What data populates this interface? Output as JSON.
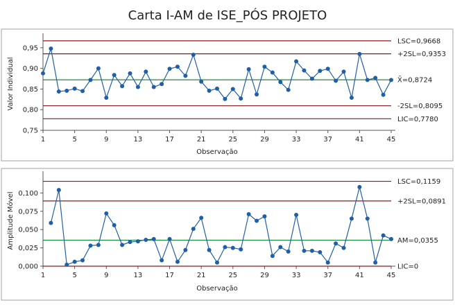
{
  "colors": {
    "series": "#1f5fa8",
    "limit": "#8b1a1a",
    "center": "#1a8a3a",
    "panel_border": "#a0a0a0",
    "axis": "#555555"
  },
  "chart_data": [
    {
      "type": "line",
      "title": "Carta I-AM de ISE_PÓS PROJETO",
      "xlabel": "Observação",
      "ylabel": "Valor Individual",
      "x_ticks": [
        1,
        5,
        9,
        13,
        17,
        21,
        25,
        29,
        33,
        37,
        41,
        45
      ],
      "y_ticks": [
        "0,75",
        "0,80",
        "0,85",
        "0,90",
        "0,95"
      ],
      "y_tick_values": [
        0.75,
        0.8,
        0.85,
        0.9,
        0.95
      ],
      "ylim": [
        0.75,
        0.975
      ],
      "xlim": [
        1,
        45
      ],
      "x": [
        1,
        2,
        3,
        4,
        5,
        6,
        7,
        8,
        9,
        10,
        11,
        12,
        13,
        14,
        15,
        16,
        17,
        18,
        19,
        20,
        21,
        22,
        23,
        24,
        25,
        26,
        27,
        28,
        29,
        30,
        31,
        32,
        33,
        34,
        35,
        36,
        37,
        38,
        39,
        40,
        41,
        42,
        43,
        44,
        45
      ],
      "series": [
        {
          "values": [
            0.888,
            0.948,
            0.844,
            0.846,
            0.851,
            0.845,
            0.872,
            0.9,
            0.829,
            0.884,
            0.857,
            0.888,
            0.855,
            0.892,
            0.855,
            0.862,
            0.899,
            0.904,
            0.882,
            0.933,
            0.868,
            0.846,
            0.851,
            0.826,
            0.85,
            0.827,
            0.898,
            0.837,
            0.904,
            0.89,
            0.867,
            0.848,
            0.917,
            0.895,
            0.875,
            0.894,
            0.899,
            0.87,
            0.892,
            0.829,
            0.935,
            0.872,
            0.877,
            0.836,
            0.872
          ]
        }
      ],
      "reference_lines": [
        {
          "label": "LSC=0,9668",
          "value": 0.9668,
          "kind": "limit"
        },
        {
          "label": "+2SL=0,9353",
          "value": 0.9353,
          "kind": "limit"
        },
        {
          "label": "X̄=0,8724",
          "value": 0.8724,
          "kind": "center"
        },
        {
          "label": "-2SL=0,8095",
          "value": 0.8095,
          "kind": "limit"
        },
        {
          "label": "LIC=0,7780",
          "value": 0.778,
          "kind": "limit"
        }
      ],
      "grid": false
    },
    {
      "type": "line",
      "title": "",
      "xlabel": "Observação",
      "ylabel": "Amplitude Móvel",
      "x_ticks": [
        1,
        5,
        9,
        13,
        17,
        21,
        25,
        29,
        33,
        37,
        41,
        45
      ],
      "y_ticks": [
        "0,000",
        "0,025",
        "0,050",
        "0,075",
        "0,100"
      ],
      "y_tick_values": [
        0.0,
        0.025,
        0.05,
        0.075,
        0.1
      ],
      "ylim": [
        0.0,
        0.124
      ],
      "xlim": [
        1,
        45
      ],
      "x": [
        2,
        3,
        4,
        5,
        6,
        7,
        8,
        9,
        10,
        11,
        12,
        13,
        14,
        15,
        16,
        17,
        18,
        19,
        20,
        21,
        22,
        23,
        24,
        25,
        26,
        27,
        28,
        29,
        30,
        31,
        32,
        33,
        34,
        35,
        36,
        37,
        38,
        39,
        40,
        41,
        42,
        43,
        44,
        45
      ],
      "series": [
        {
          "values": [
            0.059,
            0.104,
            0.002,
            0.006,
            0.008,
            0.028,
            0.029,
            0.072,
            0.056,
            0.029,
            0.033,
            0.034,
            0.036,
            0.037,
            0.008,
            0.037,
            0.006,
            0.022,
            0.051,
            0.066,
            0.022,
            0.005,
            0.026,
            0.025,
            0.023,
            0.071,
            0.062,
            0.068,
            0.014,
            0.026,
            0.02,
            0.07,
            0.021,
            0.021,
            0.019,
            0.005,
            0.031,
            0.025,
            0.065,
            0.108,
            0.065,
            0.005,
            0.042,
            0.037
          ]
        }
      ],
      "reference_lines": [
        {
          "label": "LSC=0,1159",
          "value": 0.1159,
          "kind": "limit"
        },
        {
          "label": "+2SL=0,0891",
          "value": 0.0891,
          "kind": "limit"
        },
        {
          "label": "AM=0,0355",
          "value": 0.0355,
          "kind": "center"
        },
        {
          "label": "LIC=0",
          "value": 0.0,
          "kind": "limit"
        }
      ],
      "grid": false
    }
  ]
}
